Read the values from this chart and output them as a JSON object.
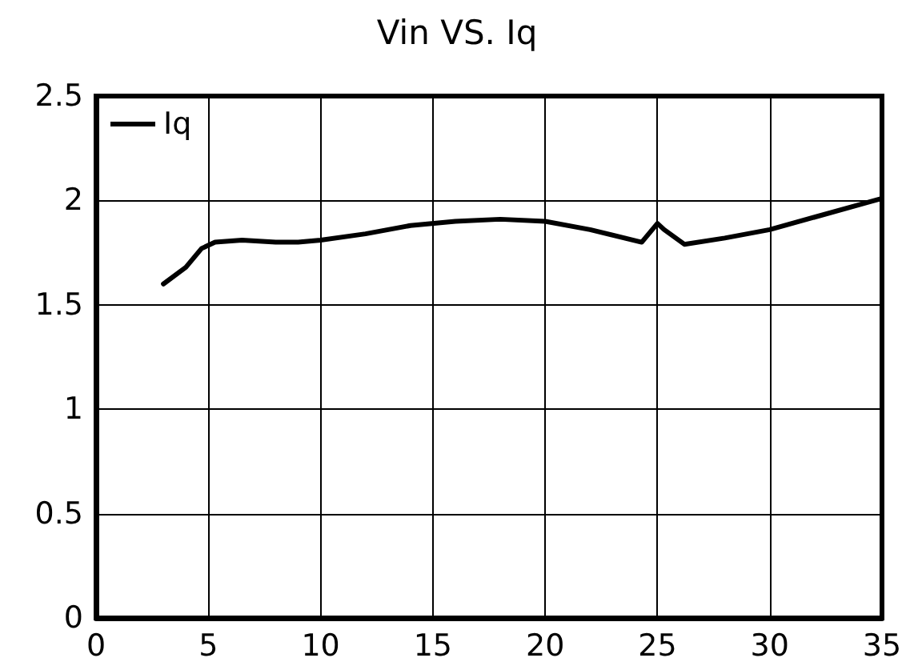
{
  "chart_data": {
    "type": "line",
    "title": "Vin VS. Iq",
    "x": [
      3,
      4,
      4.7,
      5.3,
      6.5,
      8,
      9,
      10,
      12,
      14,
      16,
      18,
      20,
      22,
      24.3,
      25,
      25.3,
      26.2,
      28,
      30,
      32,
      35
    ],
    "series": [
      {
        "name": "Iq",
        "color": "#000000",
        "values": [
          1.6,
          1.68,
          1.77,
          1.8,
          1.81,
          1.8,
          1.8,
          1.81,
          1.84,
          1.88,
          1.9,
          1.91,
          1.9,
          1.86,
          1.8,
          1.89,
          1.86,
          1.79,
          1.82,
          1.86,
          1.92,
          2.01
        ]
      }
    ],
    "xlim": [
      0,
      35
    ],
    "xticks": [
      0,
      5,
      10,
      15,
      20,
      25,
      30,
      35
    ],
    "ylim": [
      0,
      2.5
    ],
    "yticks": [
      0,
      0.5,
      1,
      1.5,
      2,
      2.5
    ],
    "grid": true,
    "legend": "top left",
    "marker": "none",
    "line_style": "solid"
  }
}
